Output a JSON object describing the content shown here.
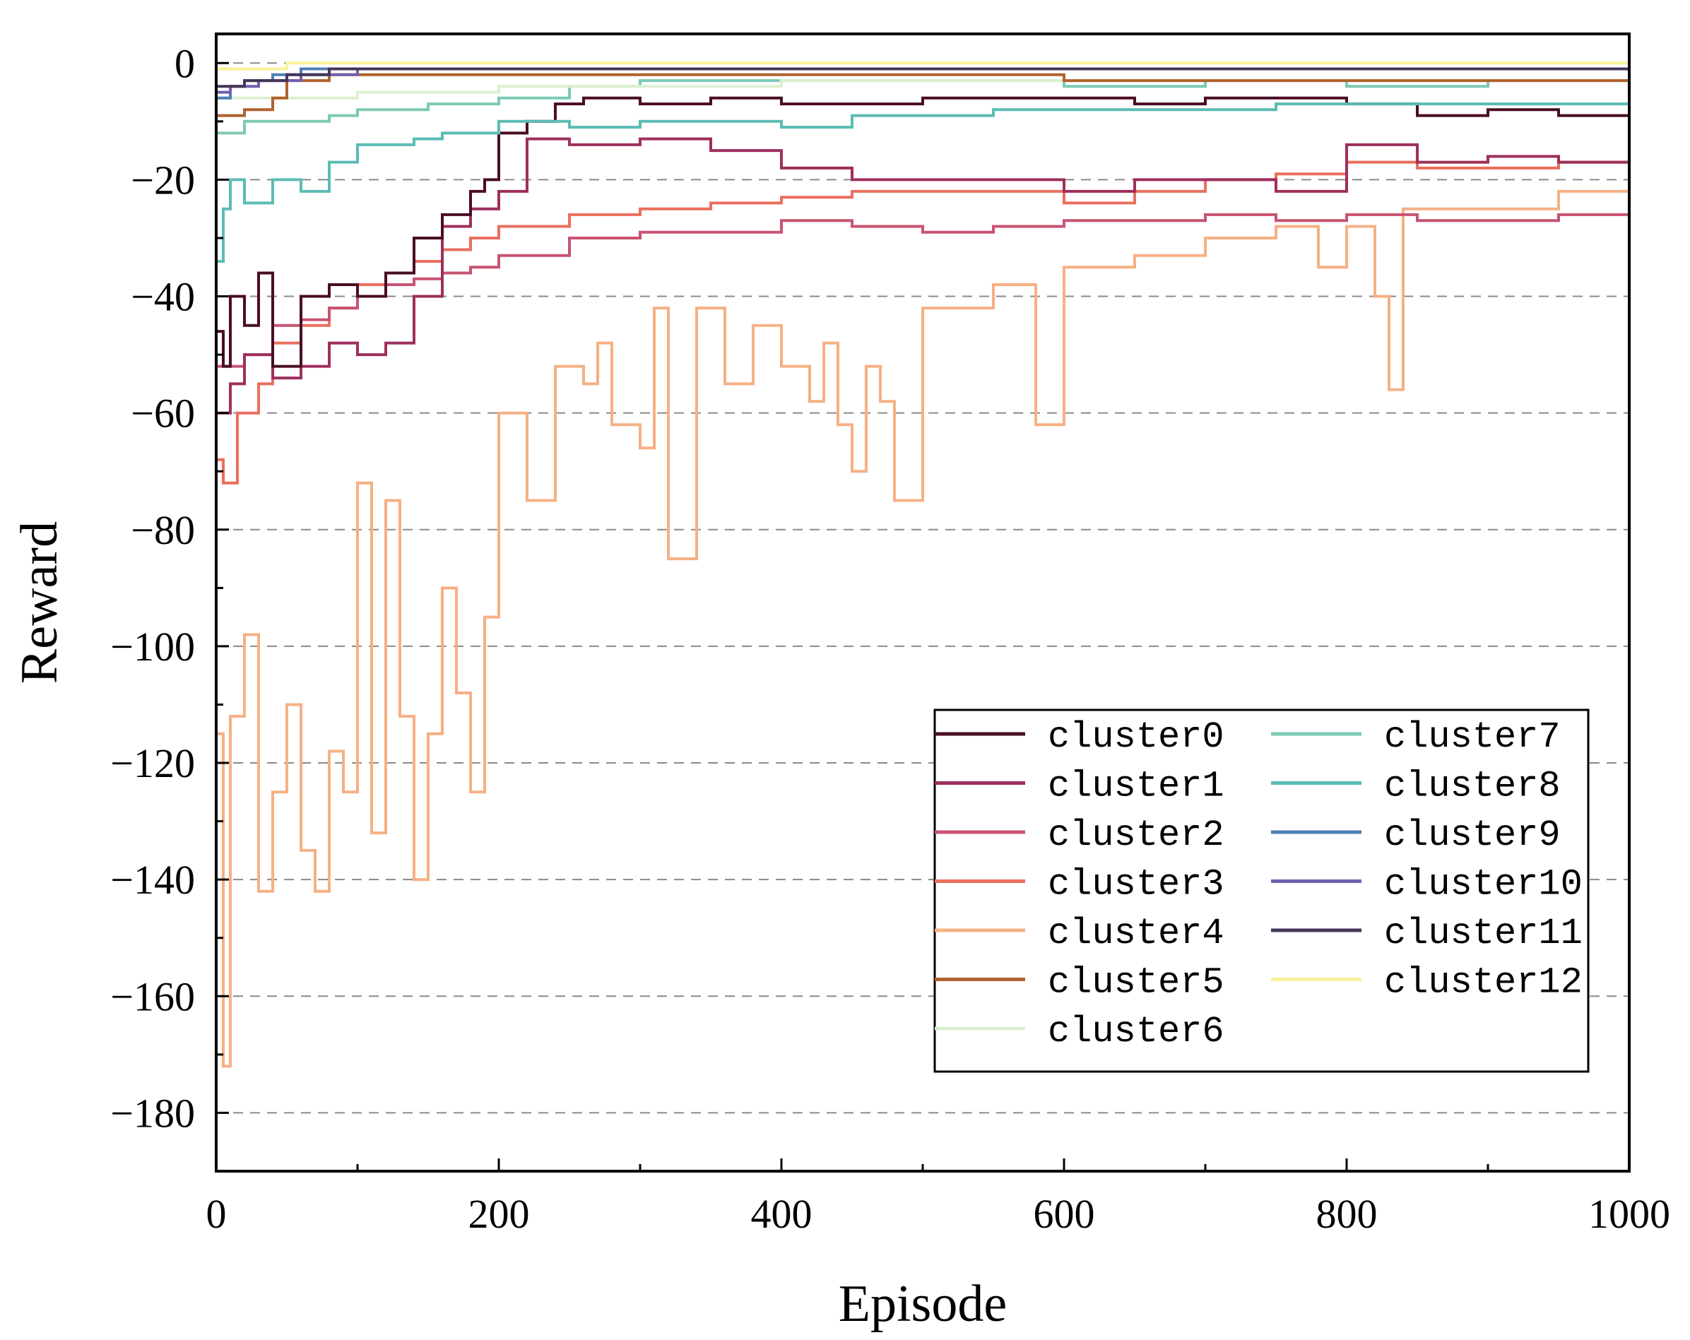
{
  "chart_data": {
    "type": "line",
    "title": "",
    "xlabel": "Episode",
    "ylabel": "Reward",
    "xlim": [
      0,
      1000
    ],
    "ylim": [
      -190,
      5
    ],
    "x_ticks": [
      0,
      200,
      400,
      600,
      800,
      1000
    ],
    "x_minor_ticks": [
      100,
      300,
      500,
      700,
      900
    ],
    "y_ticks": [
      0,
      -20,
      -40,
      -60,
      -80,
      -100,
      -120,
      -140,
      -160,
      -180
    ],
    "x_tick_labels": [
      "0",
      "200",
      "400",
      "600",
      "800",
      "1000"
    ],
    "y_tick_labels": [
      "0",
      "−20",
      "−40",
      "−60",
      "−80",
      "−100",
      "−120",
      "−140",
      "−160",
      "−180"
    ],
    "grid": "horizontal dashed at y ticks",
    "legend_position": "lower-right, two columns",
    "series": [
      {
        "name": "cluster0",
        "color": "#4a0d26",
        "points": [
          [
            0,
            -46
          ],
          [
            5,
            -52
          ],
          [
            10,
            -40
          ],
          [
            20,
            -45
          ],
          [
            30,
            -36
          ],
          [
            40,
            -52
          ],
          [
            60,
            -40
          ],
          [
            80,
            -38
          ],
          [
            100,
            -40
          ],
          [
            120,
            -36
          ],
          [
            140,
            -30
          ],
          [
            160,
            -26
          ],
          [
            180,
            -22
          ],
          [
            190,
            -20
          ],
          [
            200,
            -12
          ],
          [
            220,
            -10
          ],
          [
            240,
            -7
          ],
          [
            260,
            -6
          ],
          [
            300,
            -7
          ],
          [
            350,
            -6
          ],
          [
            400,
            -7
          ],
          [
            450,
            -7
          ],
          [
            500,
            -6
          ],
          [
            550,
            -6
          ],
          [
            600,
            -6
          ],
          [
            650,
            -7
          ],
          [
            700,
            -6
          ],
          [
            750,
            -6
          ],
          [
            800,
            -7
          ],
          [
            850,
            -9
          ],
          [
            900,
            -8
          ],
          [
            950,
            -9
          ],
          [
            1000,
            -7
          ]
        ]
      },
      {
        "name": "cluster1",
        "color": "#9e2f5c",
        "points": [
          [
            0,
            -60
          ],
          [
            10,
            -55
          ],
          [
            20,
            -50
          ],
          [
            40,
            -54
          ],
          [
            60,
            -52
          ],
          [
            80,
            -48
          ],
          [
            100,
            -50
          ],
          [
            120,
            -48
          ],
          [
            140,
            -40
          ],
          [
            160,
            -28
          ],
          [
            180,
            -25
          ],
          [
            200,
            -22
          ],
          [
            220,
            -13
          ],
          [
            250,
            -14
          ],
          [
            300,
            -13
          ],
          [
            350,
            -15
          ],
          [
            400,
            -18
          ],
          [
            450,
            -20
          ],
          [
            500,
            -20
          ],
          [
            550,
            -20
          ],
          [
            600,
            -22
          ],
          [
            650,
            -20
          ],
          [
            700,
            -20
          ],
          [
            750,
            -22
          ],
          [
            800,
            -14
          ],
          [
            850,
            -17
          ],
          [
            900,
            -16
          ],
          [
            950,
            -17
          ],
          [
            1000,
            -20
          ]
        ]
      },
      {
        "name": "cluster2",
        "color": "#c95372",
        "points": [
          [
            0,
            -52
          ],
          [
            20,
            -50
          ],
          [
            40,
            -45
          ],
          [
            60,
            -44
          ],
          [
            80,
            -42
          ],
          [
            100,
            -40
          ],
          [
            120,
            -38
          ],
          [
            140,
            -37
          ],
          [
            160,
            -36
          ],
          [
            180,
            -35
          ],
          [
            200,
            -33
          ],
          [
            250,
            -30
          ],
          [
            300,
            -29
          ],
          [
            350,
            -29
          ],
          [
            400,
            -27
          ],
          [
            450,
            -28
          ],
          [
            500,
            -29
          ],
          [
            550,
            -28
          ],
          [
            600,
            -27
          ],
          [
            650,
            -27
          ],
          [
            700,
            -26
          ],
          [
            750,
            -27
          ],
          [
            800,
            -26
          ],
          [
            850,
            -27
          ],
          [
            900,
            -27
          ],
          [
            950,
            -26
          ],
          [
            1000,
            -27
          ]
        ]
      },
      {
        "name": "cluster3",
        "color": "#ea6f5e",
        "points": [
          [
            0,
            -68
          ],
          [
            5,
            -72
          ],
          [
            15,
            -60
          ],
          [
            30,
            -55
          ],
          [
            40,
            -48
          ],
          [
            60,
            -45
          ],
          [
            80,
            -42
          ],
          [
            100,
            -38
          ],
          [
            120,
            -36
          ],
          [
            140,
            -34
          ],
          [
            160,
            -32
          ],
          [
            180,
            -30
          ],
          [
            200,
            -28
          ],
          [
            250,
            -26
          ],
          [
            300,
            -25
          ],
          [
            350,
            -24
          ],
          [
            400,
            -23
          ],
          [
            450,
            -22
          ],
          [
            500,
            -22
          ],
          [
            550,
            -22
          ],
          [
            600,
            -24
          ],
          [
            650,
            -22
          ],
          [
            700,
            -20
          ],
          [
            750,
            -19
          ],
          [
            800,
            -17
          ],
          [
            850,
            -18
          ],
          [
            900,
            -18
          ],
          [
            950,
            -17
          ],
          [
            1000,
            -16
          ]
        ]
      },
      {
        "name": "cluster4",
        "color": "#f6b084",
        "points": [
          [
            0,
            -115
          ],
          [
            5,
            -172
          ],
          [
            10,
            -112
          ],
          [
            20,
            -98
          ],
          [
            30,
            -142
          ],
          [
            40,
            -125
          ],
          [
            50,
            -110
          ],
          [
            60,
            -135
          ],
          [
            70,
            -142
          ],
          [
            80,
            -118
          ],
          [
            90,
            -125
          ],
          [
            100,
            -72
          ],
          [
            110,
            -132
          ],
          [
            120,
            -75
          ],
          [
            130,
            -112
          ],
          [
            140,
            -140
          ],
          [
            150,
            -115
          ],
          [
            160,
            -90
          ],
          [
            170,
            -108
          ],
          [
            180,
            -125
          ],
          [
            190,
            -95
          ],
          [
            200,
            -60
          ],
          [
            220,
            -75
          ],
          [
            240,
            -52
          ],
          [
            260,
            -55
          ],
          [
            270,
            -48
          ],
          [
            280,
            -62
          ],
          [
            300,
            -66
          ],
          [
            310,
            -42
          ],
          [
            320,
            -85
          ],
          [
            340,
            -42
          ],
          [
            360,
            -55
          ],
          [
            380,
            -45
          ],
          [
            400,
            -52
          ],
          [
            420,
            -58
          ],
          [
            430,
            -48
          ],
          [
            440,
            -62
          ],
          [
            450,
            -70
          ],
          [
            460,
            -52
          ],
          [
            470,
            -58
          ],
          [
            480,
            -75
          ],
          [
            500,
            -42
          ],
          [
            550,
            -38
          ],
          [
            580,
            -62
          ],
          [
            600,
            -35
          ],
          [
            650,
            -33
          ],
          [
            700,
            -30
          ],
          [
            750,
            -28
          ],
          [
            780,
            -35
          ],
          [
            800,
            -28
          ],
          [
            820,
            -40
          ],
          [
            830,
            -56
          ],
          [
            840,
            -25
          ],
          [
            900,
            -25
          ],
          [
            950,
            -22
          ],
          [
            1000,
            -18
          ]
        ]
      },
      {
        "name": "cluster5",
        "color": "#b0622f",
        "points": [
          [
            0,
            -9
          ],
          [
            20,
            -8
          ],
          [
            40,
            -6
          ],
          [
            50,
            -3
          ],
          [
            80,
            -2
          ],
          [
            100,
            -2
          ],
          [
            200,
            -2
          ],
          [
            300,
            -2
          ],
          [
            400,
            -2
          ],
          [
            500,
            -2
          ],
          [
            600,
            -3
          ],
          [
            700,
            -3
          ],
          [
            800,
            -3
          ],
          [
            900,
            -3
          ],
          [
            1000,
            -2
          ]
        ]
      },
      {
        "name": "cluster6",
        "color": "#dcf0d0",
        "points": [
          [
            0,
            -6
          ],
          [
            50,
            -6
          ],
          [
            100,
            -5
          ],
          [
            150,
            -5
          ],
          [
            200,
            -4
          ],
          [
            300,
            -4
          ],
          [
            400,
            -3
          ],
          [
            500,
            -3
          ],
          [
            600,
            -3
          ],
          [
            700,
            -3
          ],
          [
            800,
            -3
          ],
          [
            900,
            -3
          ],
          [
            1000,
            -3
          ]
        ]
      },
      {
        "name": "cluster7",
        "color": "#7dc9b5",
        "points": [
          [
            0,
            -12
          ],
          [
            20,
            -10
          ],
          [
            50,
            -10
          ],
          [
            80,
            -9
          ],
          [
            100,
            -8
          ],
          [
            150,
            -7
          ],
          [
            200,
            -6
          ],
          [
            250,
            -4
          ],
          [
            300,
            -3
          ],
          [
            400,
            -3
          ],
          [
            500,
            -3
          ],
          [
            600,
            -4
          ],
          [
            700,
            -3
          ],
          [
            800,
            -4
          ],
          [
            900,
            -3
          ],
          [
            1000,
            -3
          ]
        ]
      },
      {
        "name": "cluster8",
        "color": "#5bbcb4",
        "points": [
          [
            0,
            -34
          ],
          [
            5,
            -25
          ],
          [
            10,
            -20
          ],
          [
            20,
            -24
          ],
          [
            40,
            -20
          ],
          [
            60,
            -22
          ],
          [
            80,
            -17
          ],
          [
            100,
            -14
          ],
          [
            120,
            -14
          ],
          [
            140,
            -13
          ],
          [
            160,
            -12
          ],
          [
            200,
            -10
          ],
          [
            250,
            -11
          ],
          [
            300,
            -10
          ],
          [
            350,
            -10
          ],
          [
            400,
            -11
          ],
          [
            450,
            -9
          ],
          [
            500,
            -9
          ],
          [
            550,
            -8
          ],
          [
            600,
            -8
          ],
          [
            650,
            -8
          ],
          [
            700,
            -8
          ],
          [
            750,
            -7
          ],
          [
            800,
            -7
          ],
          [
            850,
            -7
          ],
          [
            900,
            -7
          ],
          [
            950,
            -7
          ],
          [
            1000,
            -7
          ]
        ]
      },
      {
        "name": "cluster9",
        "color": "#4f7fb8",
        "points": [
          [
            0,
            -6
          ],
          [
            10,
            -4
          ],
          [
            20,
            -3
          ],
          [
            40,
            -2
          ],
          [
            60,
            -1
          ],
          [
            100,
            -1
          ],
          [
            200,
            -1
          ],
          [
            300,
            -1
          ],
          [
            400,
            -1
          ],
          [
            500,
            -1
          ],
          [
            600,
            -1
          ],
          [
            700,
            -1
          ],
          [
            800,
            -1
          ],
          [
            900,
            -1
          ],
          [
            1000,
            -1
          ]
        ]
      },
      {
        "name": "cluster10",
        "color": "#7060b0",
        "points": [
          [
            0,
            -5
          ],
          [
            10,
            -4
          ],
          [
            30,
            -3
          ],
          [
            60,
            -2
          ],
          [
            100,
            -1
          ],
          [
            200,
            -1
          ],
          [
            300,
            -1
          ],
          [
            400,
            -1
          ],
          [
            500,
            -1
          ],
          [
            600,
            -1
          ],
          [
            700,
            -1
          ],
          [
            800,
            -1
          ],
          [
            900,
            -1
          ],
          [
            1000,
            -1
          ]
        ]
      },
      {
        "name": "cluster11",
        "color": "#443658",
        "points": [
          [
            0,
            -4
          ],
          [
            20,
            -3
          ],
          [
            50,
            -2
          ],
          [
            80,
            -1
          ],
          [
            100,
            -1
          ],
          [
            200,
            -1
          ],
          [
            300,
            -1
          ],
          [
            400,
            -1
          ],
          [
            500,
            -1
          ],
          [
            600,
            -1
          ],
          [
            700,
            -1
          ],
          [
            800,
            -1
          ],
          [
            900,
            -1
          ],
          [
            1000,
            -1
          ]
        ]
      },
      {
        "name": "cluster12",
        "color": "#f8f29a",
        "points": [
          [
            0,
            -1
          ],
          [
            10,
            -1
          ],
          [
            50,
            0
          ],
          [
            100,
            0
          ],
          [
            200,
            0
          ],
          [
            300,
            0
          ],
          [
            400,
            0
          ],
          [
            500,
            0
          ],
          [
            600,
            0
          ],
          [
            700,
            0
          ],
          [
            800,
            0
          ],
          [
            900,
            0
          ],
          [
            1000,
            0
          ]
        ]
      }
    ]
  }
}
